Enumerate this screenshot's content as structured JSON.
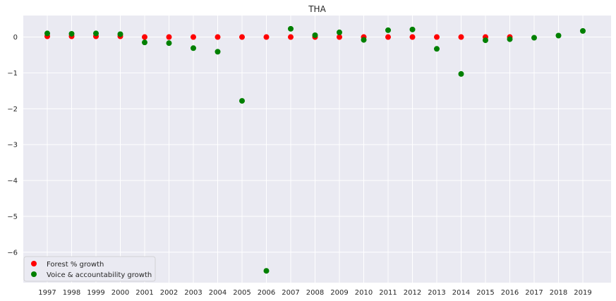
{
  "chart_data": {
    "type": "scatter",
    "title": "THA",
    "xlabel": "",
    "ylabel": "",
    "ylim": [
      -6.85,
      0.6
    ],
    "y_ticks": [
      0,
      -1,
      -2,
      -3,
      -4,
      -5,
      -6
    ],
    "grid": true,
    "legend_position": "lower-left",
    "x": [
      "1997",
      "1998",
      "1999",
      "2000",
      "2001",
      "2002",
      "2003",
      "2004",
      "2005",
      "2006",
      "2007",
      "2008",
      "2009",
      "2010",
      "2011",
      "2012",
      "2013",
      "2014",
      "2015",
      "2016",
      "2017",
      "2018",
      "2019"
    ],
    "series": [
      {
        "name": "Forest % growth",
        "color": "#ff0000",
        "values": [
          0.02,
          0.02,
          0.02,
          0.02,
          0.0,
          0.0,
          0.0,
          0.0,
          0.0,
          0.0,
          0.0,
          0.0,
          0.0,
          0.0,
          0.0,
          0.0,
          0.0,
          0.0,
          0.0,
          0.0,
          null,
          null,
          null
        ]
      },
      {
        "name": "Voice & accountability growth",
        "color": "#008000",
        "values": [
          0.1,
          0.09,
          0.1,
          0.08,
          -0.15,
          -0.17,
          -0.31,
          -0.41,
          -1.78,
          -6.52,
          0.23,
          0.05,
          0.13,
          -0.08,
          0.19,
          0.21,
          -0.33,
          -1.03,
          -0.09,
          -0.06,
          -0.02,
          0.04,
          0.17
        ]
      }
    ]
  }
}
